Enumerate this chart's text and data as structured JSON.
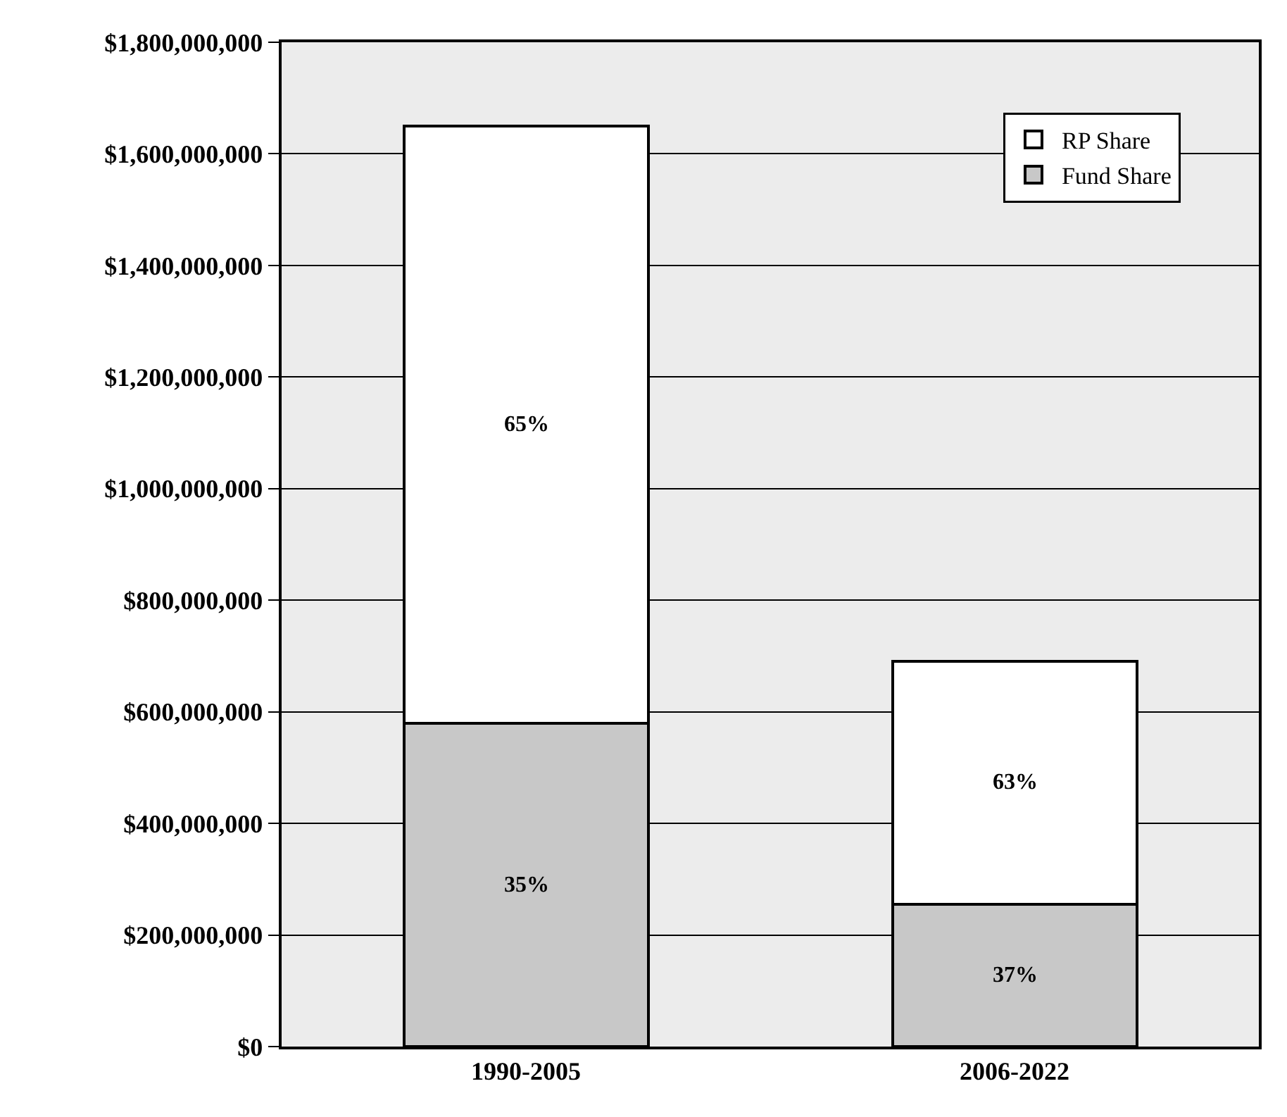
{
  "chart_data": {
    "type": "bar",
    "stacked": true,
    "categories": [
      "1990-2005",
      "2006-2022"
    ],
    "series": [
      {
        "name": "Fund Share",
        "color": "#c8c8c8",
        "values": [
          580000000,
          255000000
        ]
      },
      {
        "name": "RP Share",
        "color": "#ffffff",
        "values": [
          1070000000,
          435000000
        ]
      }
    ],
    "annotations": [
      "35%",
      "65%",
      "37%",
      "63%"
    ],
    "ylim": [
      0,
      1800000000
    ],
    "yticks": [
      {
        "value": 0,
        "label": "$0"
      },
      {
        "value": 200000000,
        "label": "$200,000,000"
      },
      {
        "value": 400000000,
        "label": "$400,000,000"
      },
      {
        "value": 600000000,
        "label": "$600,000,000"
      },
      {
        "value": 800000000,
        "label": "$800,000,000"
      },
      {
        "value": 1000000000,
        "label": "$1,000,000,000"
      },
      {
        "value": 1200000000,
        "label": "$1,200,000,000"
      },
      {
        "value": 1400000000,
        "label": "$1,400,000,000"
      },
      {
        "value": 1600000000,
        "label": "$1,600,000,000"
      },
      {
        "value": 1800000000,
        "label": "$1,800,000,000"
      }
    ],
    "grid": "y",
    "legend": "top right"
  }
}
